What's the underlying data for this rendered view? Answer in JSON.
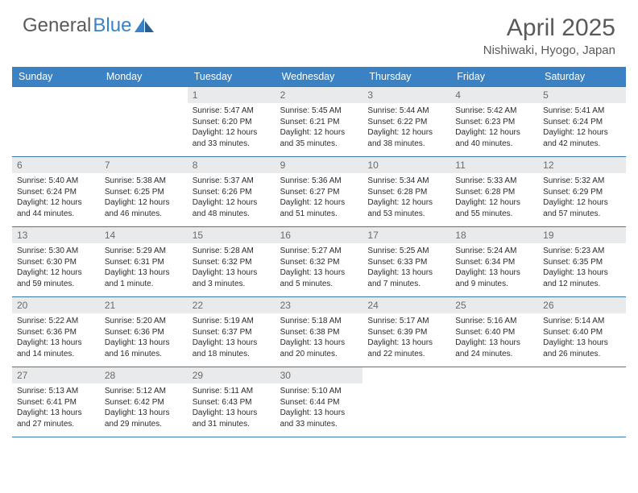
{
  "brand": {
    "part1": "General",
    "part2": "Blue"
  },
  "title": "April 2025",
  "location": "Nishiwaki, Hyogo, Japan",
  "colors": {
    "header_bg": "#3b82c4",
    "rule": "#3b77a8",
    "daynum_bg": "#e9eaeb",
    "text_muted": "#5a5a5a",
    "text_body": "#2b2b2b"
  },
  "dow": [
    "Sunday",
    "Monday",
    "Tuesday",
    "Wednesday",
    "Thursday",
    "Friday",
    "Saturday"
  ],
  "weeks": [
    [
      null,
      null,
      {
        "n": "1",
        "sr": "Sunrise: 5:47 AM",
        "ss": "Sunset: 6:20 PM",
        "d1": "Daylight: 12 hours",
        "d2": "and 33 minutes."
      },
      {
        "n": "2",
        "sr": "Sunrise: 5:45 AM",
        "ss": "Sunset: 6:21 PM",
        "d1": "Daylight: 12 hours",
        "d2": "and 35 minutes."
      },
      {
        "n": "3",
        "sr": "Sunrise: 5:44 AM",
        "ss": "Sunset: 6:22 PM",
        "d1": "Daylight: 12 hours",
        "d2": "and 38 minutes."
      },
      {
        "n": "4",
        "sr": "Sunrise: 5:42 AM",
        "ss": "Sunset: 6:23 PM",
        "d1": "Daylight: 12 hours",
        "d2": "and 40 minutes."
      },
      {
        "n": "5",
        "sr": "Sunrise: 5:41 AM",
        "ss": "Sunset: 6:24 PM",
        "d1": "Daylight: 12 hours",
        "d2": "and 42 minutes."
      }
    ],
    [
      {
        "n": "6",
        "sr": "Sunrise: 5:40 AM",
        "ss": "Sunset: 6:24 PM",
        "d1": "Daylight: 12 hours",
        "d2": "and 44 minutes."
      },
      {
        "n": "7",
        "sr": "Sunrise: 5:38 AM",
        "ss": "Sunset: 6:25 PM",
        "d1": "Daylight: 12 hours",
        "d2": "and 46 minutes."
      },
      {
        "n": "8",
        "sr": "Sunrise: 5:37 AM",
        "ss": "Sunset: 6:26 PM",
        "d1": "Daylight: 12 hours",
        "d2": "and 48 minutes."
      },
      {
        "n": "9",
        "sr": "Sunrise: 5:36 AM",
        "ss": "Sunset: 6:27 PM",
        "d1": "Daylight: 12 hours",
        "d2": "and 51 minutes."
      },
      {
        "n": "10",
        "sr": "Sunrise: 5:34 AM",
        "ss": "Sunset: 6:28 PM",
        "d1": "Daylight: 12 hours",
        "d2": "and 53 minutes."
      },
      {
        "n": "11",
        "sr": "Sunrise: 5:33 AM",
        "ss": "Sunset: 6:28 PM",
        "d1": "Daylight: 12 hours",
        "d2": "and 55 minutes."
      },
      {
        "n": "12",
        "sr": "Sunrise: 5:32 AM",
        "ss": "Sunset: 6:29 PM",
        "d1": "Daylight: 12 hours",
        "d2": "and 57 minutes."
      }
    ],
    [
      {
        "n": "13",
        "sr": "Sunrise: 5:30 AM",
        "ss": "Sunset: 6:30 PM",
        "d1": "Daylight: 12 hours",
        "d2": "and 59 minutes."
      },
      {
        "n": "14",
        "sr": "Sunrise: 5:29 AM",
        "ss": "Sunset: 6:31 PM",
        "d1": "Daylight: 13 hours",
        "d2": "and 1 minute."
      },
      {
        "n": "15",
        "sr": "Sunrise: 5:28 AM",
        "ss": "Sunset: 6:32 PM",
        "d1": "Daylight: 13 hours",
        "d2": "and 3 minutes."
      },
      {
        "n": "16",
        "sr": "Sunrise: 5:27 AM",
        "ss": "Sunset: 6:32 PM",
        "d1": "Daylight: 13 hours",
        "d2": "and 5 minutes."
      },
      {
        "n": "17",
        "sr": "Sunrise: 5:25 AM",
        "ss": "Sunset: 6:33 PM",
        "d1": "Daylight: 13 hours",
        "d2": "and 7 minutes."
      },
      {
        "n": "18",
        "sr": "Sunrise: 5:24 AM",
        "ss": "Sunset: 6:34 PM",
        "d1": "Daylight: 13 hours",
        "d2": "and 9 minutes."
      },
      {
        "n": "19",
        "sr": "Sunrise: 5:23 AM",
        "ss": "Sunset: 6:35 PM",
        "d1": "Daylight: 13 hours",
        "d2": "and 12 minutes."
      }
    ],
    [
      {
        "n": "20",
        "sr": "Sunrise: 5:22 AM",
        "ss": "Sunset: 6:36 PM",
        "d1": "Daylight: 13 hours",
        "d2": "and 14 minutes."
      },
      {
        "n": "21",
        "sr": "Sunrise: 5:20 AM",
        "ss": "Sunset: 6:36 PM",
        "d1": "Daylight: 13 hours",
        "d2": "and 16 minutes."
      },
      {
        "n": "22",
        "sr": "Sunrise: 5:19 AM",
        "ss": "Sunset: 6:37 PM",
        "d1": "Daylight: 13 hours",
        "d2": "and 18 minutes."
      },
      {
        "n": "23",
        "sr": "Sunrise: 5:18 AM",
        "ss": "Sunset: 6:38 PM",
        "d1": "Daylight: 13 hours",
        "d2": "and 20 minutes."
      },
      {
        "n": "24",
        "sr": "Sunrise: 5:17 AM",
        "ss": "Sunset: 6:39 PM",
        "d1": "Daylight: 13 hours",
        "d2": "and 22 minutes."
      },
      {
        "n": "25",
        "sr": "Sunrise: 5:16 AM",
        "ss": "Sunset: 6:40 PM",
        "d1": "Daylight: 13 hours",
        "d2": "and 24 minutes."
      },
      {
        "n": "26",
        "sr": "Sunrise: 5:14 AM",
        "ss": "Sunset: 6:40 PM",
        "d1": "Daylight: 13 hours",
        "d2": "and 26 minutes."
      }
    ],
    [
      {
        "n": "27",
        "sr": "Sunrise: 5:13 AM",
        "ss": "Sunset: 6:41 PM",
        "d1": "Daylight: 13 hours",
        "d2": "and 27 minutes."
      },
      {
        "n": "28",
        "sr": "Sunrise: 5:12 AM",
        "ss": "Sunset: 6:42 PM",
        "d1": "Daylight: 13 hours",
        "d2": "and 29 minutes."
      },
      {
        "n": "29",
        "sr": "Sunrise: 5:11 AM",
        "ss": "Sunset: 6:43 PM",
        "d1": "Daylight: 13 hours",
        "d2": "and 31 minutes."
      },
      {
        "n": "30",
        "sr": "Sunrise: 5:10 AM",
        "ss": "Sunset: 6:44 PM",
        "d1": "Daylight: 13 hours",
        "d2": "and 33 minutes."
      },
      null,
      null,
      null
    ]
  ]
}
